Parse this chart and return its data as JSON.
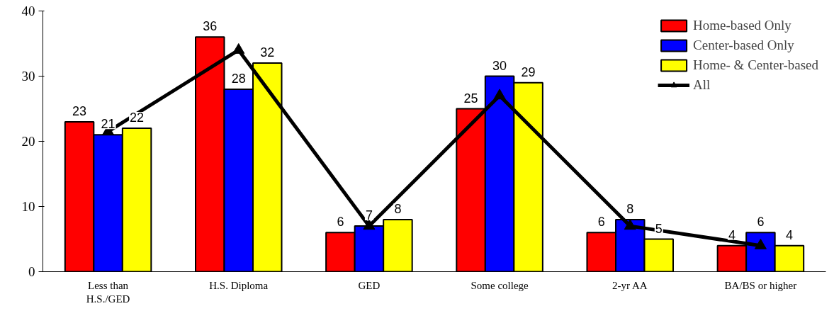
{
  "chart_data": {
    "type": "bar",
    "categories": [
      "Less than\nH.S./GED",
      "H.S. Diploma",
      "GED",
      "Some college",
      "2-yr AA",
      "BA/BS or higher"
    ],
    "ylim": [
      0,
      40
    ],
    "yticks": [
      0,
      10,
      20,
      30,
      40
    ],
    "grid": false,
    "legend": "top right",
    "series": [
      {
        "name": "Home-based Only",
        "color": "#ff0000",
        "values": [
          23,
          36,
          6,
          25,
          6,
          4
        ],
        "value_labels": [
          "23",
          "36",
          "6",
          "25",
          "6",
          "4"
        ]
      },
      {
        "name": "Center-based Only",
        "color": "#0000ff",
        "values": [
          21,
          28,
          7,
          30,
          8,
          6
        ],
        "value_labels": [
          "21",
          "28",
          "7",
          "30",
          "8",
          "6"
        ]
      },
      {
        "name": "Home- & Center-based",
        "color": "#ffff00",
        "values": [
          22,
          32,
          8,
          29,
          5,
          4
        ],
        "value_labels": [
          "22",
          "32",
          "8",
          "29",
          "5",
          "4"
        ]
      },
      {
        "name": "All",
        "type": "line",
        "color": "#000000",
        "marker": "triangle",
        "line_style": "solid",
        "values": [
          21.5,
          34,
          7,
          27,
          7,
          4
        ]
      }
    ]
  }
}
